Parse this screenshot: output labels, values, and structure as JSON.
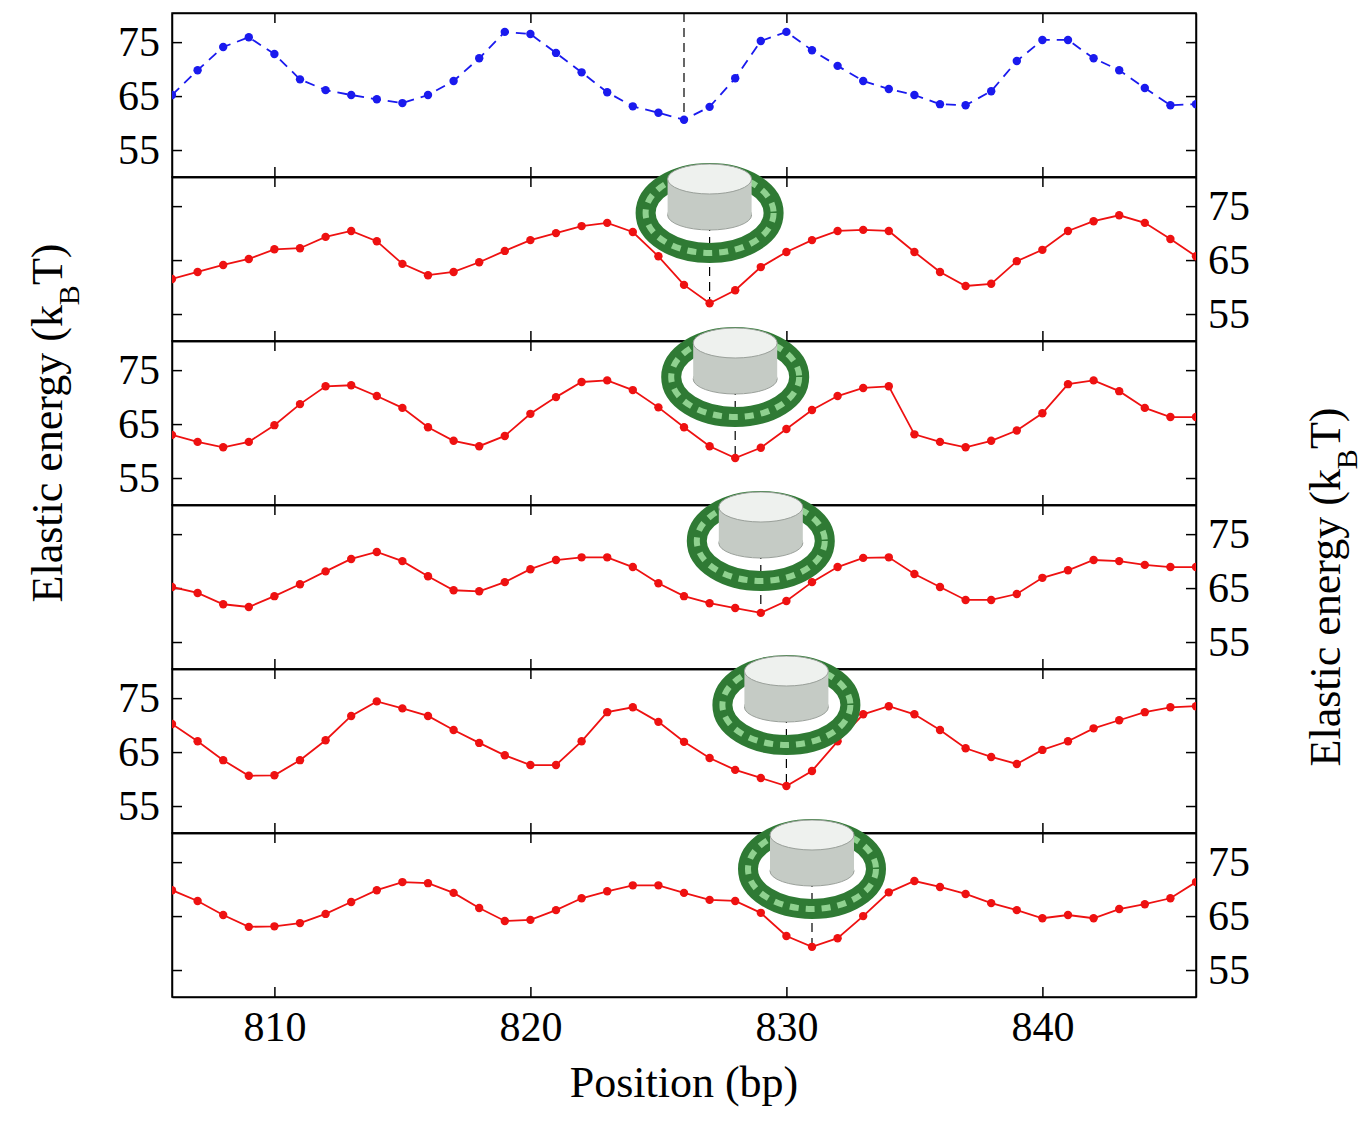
{
  "chart_data": [
    {
      "type": "line",
      "xlim": [
        806,
        846
      ],
      "xticks": [
        810,
        820,
        830,
        840
      ],
      "ylim": [
        50,
        80.4
      ],
      "yticks": [
        55,
        65,
        75
      ],
      "tick_labels": "y",
      "x": [
        806,
        807,
        808,
        809,
        810,
        811,
        812,
        813,
        814,
        815,
        816,
        817,
        818,
        819,
        820,
        821,
        822,
        823,
        824,
        825,
        826,
        827,
        828,
        829,
        830,
        831,
        832,
        833,
        834,
        835,
        836,
        837,
        838,
        839,
        840,
        841,
        842,
        843,
        844,
        845,
        846
      ],
      "series": [
        {
          "color": "#1a1aee",
          "line_style": "dashed",
          "marker": "circle",
          "values": [
            65.2,
            69.8,
            74.1,
            75.9,
            72.8,
            68.1,
            66.1,
            65.2,
            64.4,
            63.7,
            65.2,
            67.8,
            72.0,
            76.9,
            76.5,
            73.0,
            69.4,
            65.7,
            63.1,
            61.9,
            60.6,
            63.0,
            68.3,
            75.2,
            76.9,
            73.5,
            70.6,
            67.8,
            66.3,
            65.2,
            63.5,
            63.3,
            65.9,
            71.5,
            75.4,
            75.4,
            72.0,
            69.8,
            66.5,
            63.3,
            63.5
          ]
        }
      ],
      "nucleosome_position": 826
    },
    {
      "type": "line",
      "xlim": [
        806,
        846
      ],
      "xticks": [
        810,
        820,
        830,
        840
      ],
      "y2lim": [
        50,
        80.4
      ],
      "y2ticks": [
        55,
        65,
        75
      ],
      "tick_labels": "y",
      "x": [
        806,
        807,
        808,
        809,
        810,
        811,
        812,
        813,
        814,
        815,
        816,
        817,
        818,
        819,
        820,
        821,
        822,
        823,
        824,
        825,
        826,
        827,
        828,
        829,
        830,
        831,
        832,
        833,
        834,
        835,
        836,
        837,
        838,
        839,
        840,
        841,
        842,
        843,
        844,
        845,
        846
      ],
      "series": [
        {
          "color": "#ee1111",
          "line_style": "solid",
          "marker": "circle",
          "axis": "y2",
          "values": [
            61.5,
            62.8,
            64.1,
            65.2,
            67.0,
            67.2,
            69.3,
            70.4,
            68.5,
            64.3,
            62.2,
            62.8,
            64.6,
            66.7,
            68.7,
            70.0,
            71.3,
            71.9,
            70.2,
            65.7,
            60.4,
            57.0,
            59.4,
            63.7,
            66.5,
            68.7,
            70.4,
            70.6,
            70.4,
            66.5,
            62.8,
            60.2,
            60.6,
            64.8,
            66.9,
            70.4,
            72.2,
            73.3,
            71.9,
            68.9,
            65.7
          ]
        }
      ],
      "nucleosome_position": 827
    },
    {
      "type": "line",
      "xlim": [
        806,
        846
      ],
      "xticks": [
        810,
        820,
        830,
        840
      ],
      "ylim": [
        50,
        80.4
      ],
      "yticks": [
        55,
        65,
        75
      ],
      "tick_labels": "y",
      "ylabel": [
        "Elastic energy (k",
        "B",
        "T)"
      ],
      "x": [
        806,
        807,
        808,
        809,
        810,
        811,
        812,
        813,
        814,
        815,
        816,
        817,
        818,
        819,
        820,
        821,
        822,
        823,
        824,
        825,
        826,
        827,
        828,
        829,
        830,
        831,
        832,
        833,
        834,
        835,
        836,
        837,
        838,
        839,
        840,
        841,
        842,
        843,
        844,
        845,
        846
      ],
      "series": [
        {
          "color": "#ee1111",
          "line_style": "solid",
          "marker": "circle",
          "values": [
            63.0,
            61.7,
            60.7,
            61.7,
            64.8,
            68.7,
            72.0,
            72.2,
            70.2,
            68.0,
            64.4,
            61.9,
            60.9,
            62.8,
            66.9,
            70.0,
            72.8,
            73.1,
            71.3,
            68.1,
            64.4,
            60.9,
            58.7,
            60.6,
            64.1,
            67.6,
            70.2,
            71.7,
            72.0,
            63.1,
            61.7,
            60.7,
            61.9,
            63.8,
            67.0,
            72.4,
            73.1,
            71.1,
            68.0,
            66.3,
            66.3
          ]
        }
      ],
      "nucleosome_position": 828
    },
    {
      "type": "line",
      "xlim": [
        806,
        846
      ],
      "xticks": [
        810,
        820,
        830,
        840
      ],
      "y2lim": [
        50,
        80.4
      ],
      "y2ticks": [
        55,
        65,
        75
      ],
      "tick_labels": "y",
      "y2label": [
        "Elastic energy (k",
        "B",
        "T)"
      ],
      "x": [
        806,
        807,
        808,
        809,
        810,
        811,
        812,
        813,
        814,
        815,
        816,
        817,
        818,
        819,
        820,
        821,
        822,
        823,
        824,
        825,
        826,
        827,
        828,
        829,
        830,
        831,
        832,
        833,
        834,
        835,
        836,
        837,
        838,
        839,
        840,
        841,
        842,
        843,
        844,
        845,
        846
      ],
      "series": [
        {
          "color": "#ee1111",
          "line_style": "solid",
          "marker": "circle",
          "axis": "y2",
          "values": [
            65.2,
            64.1,
            62.0,
            61.5,
            63.5,
            65.7,
            68.1,
            70.4,
            71.7,
            70.0,
            67.2,
            64.6,
            64.4,
            66.1,
            68.5,
            70.2,
            70.7,
            70.7,
            68.9,
            65.9,
            63.5,
            62.2,
            61.3,
            60.4,
            62.6,
            66.1,
            68.9,
            70.6,
            70.7,
            67.6,
            65.2,
            62.8,
            62.8,
            63.9,
            66.9,
            68.3,
            70.2,
            70.0,
            69.3,
            68.9,
            68.9
          ]
        }
      ],
      "nucleosome_position": 829
    },
    {
      "type": "line",
      "xlim": [
        806,
        846
      ],
      "xticks": [
        810,
        820,
        830,
        840
      ],
      "ylim": [
        50,
        80.4
      ],
      "yticks": [
        55,
        65,
        75
      ],
      "tick_labels": "y",
      "x": [
        806,
        807,
        808,
        809,
        810,
        811,
        812,
        813,
        814,
        815,
        816,
        817,
        818,
        819,
        820,
        821,
        822,
        823,
        824,
        825,
        826,
        827,
        828,
        829,
        830,
        831,
        832,
        833,
        834,
        835,
        836,
        837,
        838,
        839,
        840,
        841,
        842,
        843,
        844,
        845,
        846
      ],
      "series": [
        {
          "color": "#ee1111",
          "line_style": "solid",
          "marker": "circle",
          "values": [
            70.2,
            67.0,
            63.5,
            60.6,
            60.7,
            63.5,
            67.2,
            71.7,
            74.4,
            73.1,
            71.7,
            69.1,
            66.7,
            64.4,
            62.6,
            62.6,
            67.0,
            72.4,
            73.3,
            70.6,
            66.9,
            63.9,
            61.7,
            60.2,
            58.7,
            61.5,
            67.0,
            72.0,
            73.5,
            72.0,
            69.1,
            65.7,
            64.1,
            62.8,
            65.4,
            67.0,
            69.4,
            70.9,
            72.4,
            73.3,
            73.5
          ]
        }
      ],
      "nucleosome_position": 830
    },
    {
      "type": "line",
      "xlim": [
        806,
        846
      ],
      "xticks": [
        810,
        820,
        830,
        840
      ],
      "y2lim": [
        50,
        80.4
      ],
      "y2ticks": [
        55,
        65,
        75
      ],
      "tick_labels": true,
      "xlabel": "Position (bp)",
      "x": [
        806,
        807,
        808,
        809,
        810,
        811,
        812,
        813,
        814,
        815,
        816,
        817,
        818,
        819,
        820,
        821,
        822,
        823,
        824,
        825,
        826,
        827,
        828,
        829,
        830,
        831,
        832,
        833,
        834,
        835,
        836,
        837,
        838,
        839,
        840,
        841,
        842,
        843,
        844,
        845,
        846
      ],
      "series": [
        {
          "color": "#ee1111",
          "line_style": "solid",
          "marker": "circle",
          "axis": "y2",
          "values": [
            69.8,
            67.8,
            65.2,
            63.0,
            63.1,
            63.7,
            65.4,
            67.6,
            69.8,
            71.3,
            71.1,
            69.3,
            66.5,
            64.1,
            64.3,
            66.1,
            68.3,
            69.6,
            70.7,
            70.7,
            69.3,
            68.0,
            67.8,
            65.6,
            61.3,
            59.3,
            60.9,
            65.0,
            69.4,
            71.5,
            70.4,
            69.1,
            67.4,
            66.1,
            64.6,
            65.2,
            64.6,
            66.3,
            67.2,
            68.3,
            71.3
          ]
        }
      ],
      "nucleosome_position": 831
    }
  ]
}
